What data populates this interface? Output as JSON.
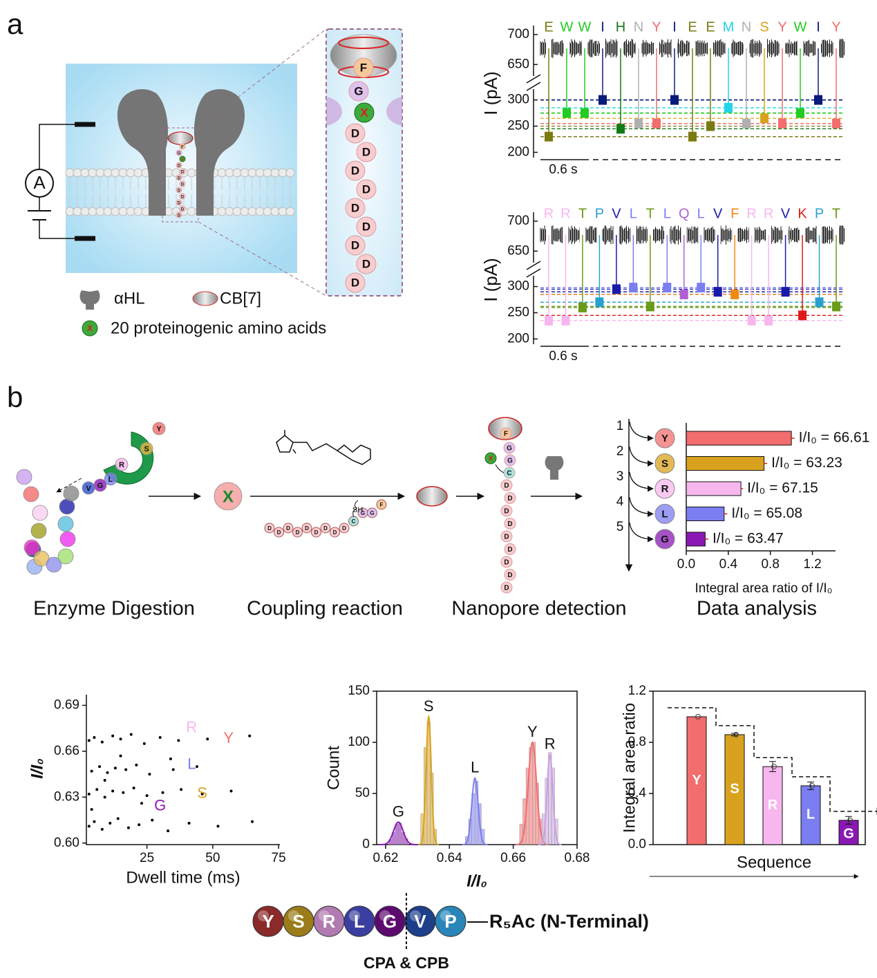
{
  "panel_a": {
    "label": "a",
    "ammeter": "A",
    "zoom_chain": [
      "F",
      "G",
      "X",
      "D",
      "D",
      "D",
      "D",
      "D",
      "D",
      "D",
      "D",
      "D"
    ],
    "legend": {
      "pore": "αHL",
      "host": "CB[7]",
      "amino_acid_icon": "X",
      "amino_acids": "20 proteinogenic amino acids"
    }
  },
  "panel_b": {
    "label": "b",
    "enzyme_residues": [
      "R",
      "L",
      "G",
      "V"
    ],
    "released": [
      "S",
      "Y"
    ],
    "product": "X",
    "linker_chain": [
      "D",
      "D",
      "D",
      "D",
      "D",
      "D",
      "D",
      "D",
      "D",
      "C",
      "G",
      "G",
      "F"
    ],
    "thiol": "SH",
    "captured_host_chain": [
      "F",
      "G",
      "G",
      "C"
    ],
    "captured_residue": "X",
    "captured_tail": [
      "D",
      "D",
      "D",
      "D",
      "D",
      "D",
      "D",
      "D",
      "D"
    ],
    "steps": [
      "Enzyme Digestion",
      "Coupling reaction",
      "Nanopore detection",
      "Data analysis"
    ]
  },
  "sequence": {
    "residues": [
      "Y",
      "S",
      "R",
      "L",
      "G",
      "V",
      "P"
    ],
    "colors": [
      "#8b2a2a",
      "#9a7d1a",
      "#b07bb0",
      "#3b3fa0",
      "#5d0a6e",
      "#1e3f8a",
      "#2a86b8"
    ],
    "tail": "R₅Ac (N-Terminal)",
    "enzymes": "CPA & CPB"
  },
  "chart_data": [
    {
      "type": "trace",
      "y_label": "I (pA)",
      "ylim": [
        190,
        715
      ],
      "axis_break": [
        310,
        640
      ],
      "yticks": [
        200,
        250,
        300,
        650,
        700
      ],
      "scale_bar": "0.6 s",
      "categories": [
        "E",
        "W",
        "W",
        "I",
        "H",
        "N",
        "Y",
        "I",
        "E",
        "E",
        "M",
        "N",
        "S",
        "Y",
        "W",
        "I",
        "Y"
      ],
      "values": [
        230,
        275,
        275,
        300,
        245,
        255,
        255,
        300,
        230,
        250,
        285,
        255,
        265,
        255,
        275,
        300,
        255
      ],
      "colors": [
        "#7a7a10",
        "#22cc22",
        "#22cc22",
        "#0a1a7a",
        "#137a13",
        "#b0b0b0",
        "#f26d6d",
        "#0a1a7a",
        "#7a7a10",
        "#7a7a10",
        "#22d4e8",
        "#b0b0b0",
        "#d9a21e",
        "#f26d6d",
        "#22cc22",
        "#0a1a7a",
        "#f26d6d"
      ]
    },
    {
      "type": "trace",
      "y_label": "I (pA)",
      "ylim": [
        190,
        715
      ],
      "axis_break": [
        310,
        640
      ],
      "yticks": [
        200,
        250,
        300,
        650,
        700
      ],
      "scale_bar": "0.6 s",
      "categories": [
        "R",
        "R",
        "T",
        "P",
        "V",
        "L",
        "T",
        "L",
        "Q",
        "L",
        "V",
        "F",
        "R",
        "R",
        "V",
        "K",
        "P",
        "T"
      ],
      "values": [
        235,
        235,
        260,
        270,
        295,
        298,
        262,
        298,
        285,
        298,
        290,
        285,
        235,
        235,
        290,
        245,
        270,
        262
      ],
      "colors": [
        "#f7b7ee",
        "#f7b7ee",
        "#6a9a1a",
        "#2aa0d0",
        "#1a1aaa",
        "#7b7ef0",
        "#6a9a1a",
        "#7b7ef0",
        "#b060d0",
        "#7b7ef0",
        "#1a1aaa",
        "#f08a10",
        "#f7b7ee",
        "#f7b7ee",
        "#1a1aaa",
        "#e01a1a",
        "#2aa0d0",
        "#6a9a1a"
      ]
    },
    {
      "type": "hbar",
      "categories": [
        "Y",
        "S",
        "R",
        "L",
        "G"
      ],
      "values": [
        1.0,
        0.74,
        0.52,
        0.36,
        0.18
      ],
      "errors": [
        0.03,
        0.03,
        0.02,
        0.03,
        0.03
      ],
      "colors": [
        "#f26d6d",
        "#d9a21e",
        "#f7b7ee",
        "#7b7ef0",
        "#8b18b5"
      ],
      "annotations": [
        "I/I₀ = 66.61",
        "I/I₀ = 63.23",
        "I/I₀ = 67.15",
        "I/I₀ = 65.08",
        "I/I₀ = 63.47"
      ],
      "steps": [
        "1",
        "2",
        "3",
        "4",
        "5"
      ],
      "xlim": [
        0,
        1.42
      ],
      "xticks": [
        {
          "value": 0,
          "label": "0.0"
        },
        0.4,
        0.8,
        1.2
      ],
      "x_label": "Integral area ratio of I/I₀"
    },
    {
      "type": "scatter",
      "x_label": "Dwell time (ms)",
      "y_label": "I/I₀",
      "color": "#000000",
      "xlim": [
        2,
        75.5
      ],
      "ylim": [
        0.599,
        0.697
      ],
      "xticks": [
        25,
        50,
        75
      ],
      "yticks": [
        {
          "value": 0.6,
          "label": "0.60"
        },
        0.63,
        0.66,
        0.69
      ],
      "x": [
        3,
        5,
        8,
        11,
        14,
        18,
        22,
        27,
        33,
        41,
        52,
        65,
        3,
        6,
        9,
        12,
        16,
        20,
        25,
        31,
        38,
        46,
        57,
        4,
        7,
        10,
        13,
        17,
        21,
        26,
        35,
        44,
        3,
        5,
        8,
        12,
        15,
        19,
        24,
        30,
        37,
        48,
        64,
        4,
        9,
        15,
        23,
        34
      ],
      "y": [
        0.611,
        0.614,
        0.609,
        0.613,
        0.616,
        0.61,
        0.612,
        0.615,
        0.608,
        0.613,
        0.611,
        0.614,
        0.632,
        0.635,
        0.63,
        0.634,
        0.633,
        0.636,
        0.631,
        0.633,
        0.635,
        0.632,
        0.634,
        0.647,
        0.65,
        0.646,
        0.649,
        0.648,
        0.651,
        0.645,
        0.648,
        0.65,
        0.667,
        0.669,
        0.666,
        0.67,
        0.668,
        0.671,
        0.665,
        0.669,
        0.667,
        0.668,
        0.67,
        0.622,
        0.641,
        0.657,
        0.626,
        0.655
      ],
      "labels": [
        {
          "text": "R",
          "x": 42,
          "y": 0.675,
          "color": "#f7b7ee"
        },
        {
          "text": "Y",
          "x": 56,
          "y": 0.668,
          "color": "#f26d6d"
        },
        {
          "text": "L",
          "x": 42,
          "y": 0.651,
          "color": "#7b7ef0"
        },
        {
          "text": "S",
          "x": 46,
          "y": 0.632,
          "color": "#d9a21e"
        },
        {
          "text": "G",
          "x": 30,
          "y": 0.624,
          "color": "#8b18b5"
        }
      ]
    },
    {
      "type": "histogram",
      "x_label": "I/I₀",
      "y_label": "Count",
      "xlim": [
        0.6172,
        0.68
      ],
      "ylim": [
        0,
        150
      ],
      "xticks": [
        0.62,
        0.64,
        0.66,
        0.68
      ],
      "yticks": [
        0,
        50,
        100,
        150
      ],
      "series": [
        {
          "name": "G",
          "color": "#8b18b5",
          "bins": [
            0.621,
            0.622,
            0.623,
            0.624,
            0.625,
            0.626,
            0.627
          ],
          "values": [
            5,
            12,
            20,
            21,
            12,
            6
          ],
          "fit": {
            "mean": 0.624,
            "sigma": 0.0015,
            "amplitude": 22
          }
        },
        {
          "name": "S",
          "color": "#d9a21e",
          "bins": [
            0.631,
            0.632,
            0.633,
            0.634,
            0.635,
            0.636
          ],
          "values": [
            30,
            95,
            120,
            70,
            15
          ],
          "fit": {
            "mean": 0.6335,
            "sigma": 0.0008,
            "amplitude": 125
          }
        },
        {
          "name": "L",
          "color": "#7b7ef0",
          "bins": [
            0.645,
            0.646,
            0.647,
            0.648,
            0.649,
            0.65,
            0.651
          ],
          "values": [
            8,
            25,
            50,
            62,
            40,
            15
          ],
          "fit": {
            "mean": 0.648,
            "sigma": 0.001,
            "amplitude": 65
          }
        },
        {
          "name": "Y",
          "color": "#f26d6d",
          "bins": [
            0.662,
            0.663,
            0.664,
            0.665,
            0.666,
            0.667,
            0.668,
            0.669
          ],
          "values": [
            20,
            45,
            75,
            95,
            100,
            60,
            25
          ],
          "fit": {
            "mean": 0.666,
            "sigma": 0.0013,
            "amplitude": 100
          }
        },
        {
          "name": "R",
          "color": "#c9a0e0",
          "bins": [
            0.669,
            0.67,
            0.671,
            0.672,
            0.673,
            0.674
          ],
          "values": [
            30,
            65,
            90,
            75,
            25
          ],
          "fit": {
            "mean": 0.6715,
            "sigma": 0.0009,
            "amplitude": 88
          }
        }
      ]
    },
    {
      "type": "bar",
      "y_label": "Integral area ratio",
      "x_label": "Sequence",
      "categories": [
        "Y",
        "S",
        "R",
        "L",
        "G"
      ],
      "values": [
        1.0,
        0.86,
        0.61,
        0.46,
        0.19
      ],
      "errors": [
        0,
        0.01,
        0.04,
        0.03,
        0.03
      ],
      "colors": [
        "#f26d6d",
        "#d9a21e",
        "#f7b7ee",
        "#7b7ef0",
        "#8b18b5"
      ],
      "ylim": [
        0,
        1.2
      ],
      "yticks": [
        {
          "value": 0,
          "label": "0.0"
        },
        0.4,
        0.8,
        1.2
      ]
    }
  ]
}
